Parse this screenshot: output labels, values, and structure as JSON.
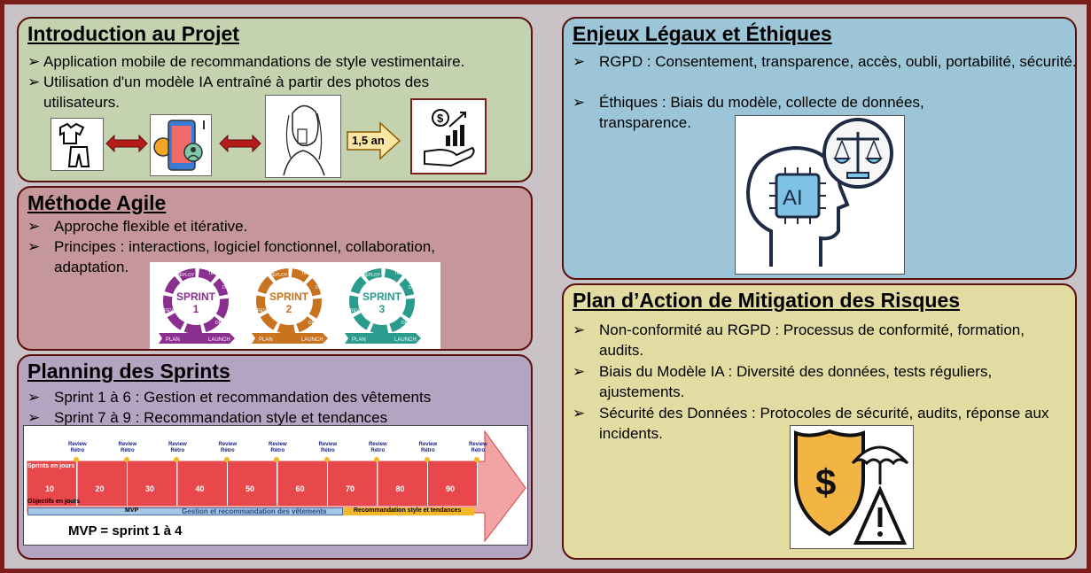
{
  "intro": {
    "title": "Introduction au Projet",
    "bullets": [
      "Application mobile de recommandations de style vestimentaire.",
      "Utilisation d'un modèle IA entraîné à partir des photos des utilisateurs."
    ],
    "duration_label": "1,5 an"
  },
  "agile": {
    "title": "Méthode Agile",
    "bullets": [
      "Approche flexible et itérative.",
      "Principes : interactions, logiciel fonctionnel, collaboration, adaptation."
    ],
    "sprints": [
      {
        "label": "SPRINT",
        "num": "1",
        "color": "#8a2f8f"
      },
      {
        "label": "SPRINT",
        "num": "2",
        "color": "#c9731e"
      },
      {
        "label": "SPRINT",
        "num": "3",
        "color": "#2a9b8c"
      }
    ],
    "cycle_words": {
      "deploy": "DEPLOY",
      "test": "TEST",
      "develop": "DEVELOP",
      "review": "REVIEW",
      "plan": "PLAN",
      "design": "DESIGN",
      "launch": "LAUNCH"
    }
  },
  "planning": {
    "title": "Planning des Sprints",
    "bullets": [
      "Sprint 1 à 6 : Gestion et recommandation des vêtements",
      "Sprint 7 à 9 : Recommandation style et tendances"
    ],
    "review_label_1": "Review",
    "review_label_2": "Rétro",
    "sprints_label": "Sprints en jours",
    "objectifs_label": "Objectifs en jours",
    "days": [
      "10",
      "20",
      "30",
      "40",
      "50",
      "60",
      "70",
      "80",
      "90"
    ],
    "bar_mvp": "MVP",
    "bar_gestion": "Gestion et recommandation des vêtements",
    "bar_tendances": "Recommandation style et tendances",
    "mvp_note": "MVP = sprint 1 à 4"
  },
  "enjeux": {
    "title": "Enjeux Légaux et Éthiques",
    "bullets": [
      "RGPD : Consentement, transparence, accès, oubli, portabilité, sécurité.",
      "Éthiques : Biais du modèle, collecte de données, transparence."
    ],
    "ai_label": "AI"
  },
  "plan": {
    "title": "Plan d’Action de Mitigation des Risques",
    "bullets": [
      "Non-conformité au RGPD : Processus de conformité, formation, audits.",
      "Biais du Modèle IA : Diversité des données, tests réguliers, ajustements.",
      "Sécurité des Données : Protocoles de sécurité, audits, réponse aux incidents."
    ],
    "dollar_label": "$"
  },
  "colors": {
    "intro_bg": "#c5d2b0",
    "agile_bg": "#c5979a",
    "planning_bg": "#b4a4c2",
    "enjeux_bg": "#9dc5d8",
    "plan_bg": "#e2dca2",
    "sprint_red": "#e8474b"
  }
}
